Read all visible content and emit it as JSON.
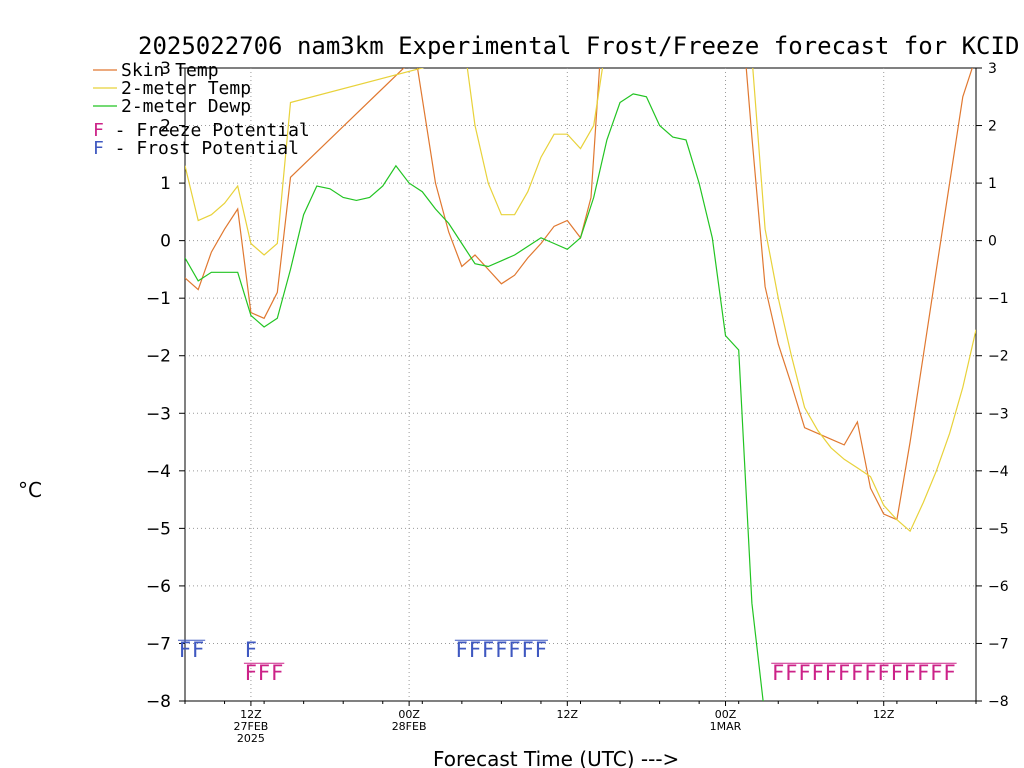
{
  "chart_data": {
    "type": "line",
    "title": "2025022706 nam3km Experimental Frost/Freeze forecast for KCID",
    "xlabel": "Forecast Time (UTC) --->",
    "ylabel": "°C",
    "ylim": [
      -8,
      3
    ],
    "yticks": [
      3,
      2,
      1,
      0,
      -1,
      -2,
      -3,
      -4,
      -5,
      -6,
      -7,
      -8
    ],
    "grid": true,
    "x_unit": "hours from 2025-02-27 07Z",
    "xlim": [
      0,
      60
    ],
    "xticks": [
      {
        "hour": 5,
        "lines": [
          "12Z",
          "27FEB",
          "2025"
        ]
      },
      {
        "hour": 17,
        "lines": [
          "00Z",
          "28FEB"
        ]
      },
      {
        "hour": 29,
        "lines": [
          "12Z"
        ]
      },
      {
        "hour": 41,
        "lines": [
          "00Z",
          "1MAR"
        ]
      },
      {
        "hour": 53,
        "lines": [
          "12Z"
        ]
      }
    ],
    "legend_position": "top-left",
    "series": [
      {
        "name": "Skin Temp",
        "color": "#e07830",
        "x": [
          0,
          1,
          2,
          3,
          4,
          5,
          6,
          7,
          8,
          17.5,
          19,
          20,
          21,
          22,
          23,
          24,
          25,
          26,
          27,
          28,
          29,
          30,
          30.8,
          31.5,
          42.5,
          43,
          44,
          45,
          46,
          47,
          48,
          49,
          50,
          51,
          52,
          53,
          54,
          55,
          56,
          57,
          58,
          59,
          60
        ],
        "y": [
          -0.65,
          -0.85,
          -0.2,
          0.2,
          0.55,
          -1.25,
          -1.35,
          -0.9,
          1.1,
          3.2,
          1.0,
          0.15,
          -0.45,
          -0.25,
          -0.5,
          -0.75,
          -0.6,
          -0.3,
          -0.05,
          0.25,
          0.35,
          0.05,
          0.75,
          3.2,
          3.2,
          1.8,
          -0.8,
          -1.8,
          -2.5,
          -3.25,
          -3.35,
          -3.45,
          -3.55,
          -3.15,
          -4.3,
          -4.75,
          -4.85,
          -3.5,
          -2.0,
          -0.5,
          1.0,
          2.5,
          3.2
        ]
      },
      {
        "name": "2-meter Temp",
        "color": "#e8d23a",
        "x": [
          0,
          1,
          2,
          3,
          4,
          5,
          6,
          7,
          8,
          21.3,
          22,
          23,
          24,
          25,
          26,
          27,
          28,
          29,
          30,
          31,
          31.8,
          43,
          44,
          45,
          46,
          47,
          48,
          49,
          50,
          51,
          52,
          53,
          54,
          55,
          56,
          57,
          58,
          59,
          60
        ],
        "y": [
          1.3,
          0.35,
          0.45,
          0.65,
          0.95,
          -0.05,
          -0.25,
          -0.05,
          2.4,
          3.2,
          2.0,
          1.0,
          0.45,
          0.45,
          0.85,
          1.45,
          1.85,
          1.85,
          1.6,
          2.0,
          3.2,
          3.2,
          0.2,
          -1.0,
          -2.0,
          -2.9,
          -3.3,
          -3.6,
          -3.8,
          -3.95,
          -4.1,
          -4.6,
          -4.85,
          -5.05,
          -4.55,
          -4.0,
          -3.35,
          -2.55,
          -1.55
        ]
      },
      {
        "name": "2-meter Dewp",
        "color": "#22c422",
        "x": [
          0,
          1,
          2,
          3,
          4,
          5,
          6,
          7,
          8,
          9,
          10,
          11,
          12,
          13,
          14,
          15,
          16,
          17,
          18,
          19,
          20,
          21,
          22,
          23,
          24,
          25,
          26,
          27,
          28,
          29,
          30,
          31,
          32,
          33,
          34,
          35,
          36,
          37,
          38,
          39,
          40,
          41,
          42,
          43,
          44,
          45,
          46
        ],
        "y": [
          -0.3,
          -0.7,
          -0.55,
          -0.55,
          -0.55,
          -1.3,
          -1.5,
          -1.35,
          -0.5,
          0.45,
          0.95,
          0.9,
          0.75,
          0.7,
          0.75,
          0.95,
          1.3,
          1.0,
          0.85,
          0.55,
          0.3,
          -0.05,
          -0.4,
          -0.45,
          -0.35,
          -0.25,
          -0.1,
          0.05,
          -0.05,
          -0.15,
          0.05,
          0.75,
          1.75,
          2.4,
          2.55,
          2.5,
          2.0,
          1.8,
          1.75,
          1.0,
          0.05,
          -1.65,
          -1.9,
          -6.3,
          -8.3,
          -8.3,
          -8.3
        ]
      }
    ],
    "annotations": {
      "freeze_potential": {
        "label": "F - Freeze Potential",
        "color": "#cc2288",
        "y": -7.5,
        "hours": [
          5,
          6,
          7,
          45,
          46,
          47,
          48,
          49,
          50,
          51,
          52,
          53,
          54,
          55,
          56,
          57,
          58
        ]
      },
      "frost_potential": {
        "label": "F - Frost Potential",
        "color": "#3f58c0",
        "y": -7.1,
        "hours": [
          0,
          1,
          5,
          21,
          22,
          23,
          24,
          25,
          26,
          27
        ]
      }
    }
  }
}
